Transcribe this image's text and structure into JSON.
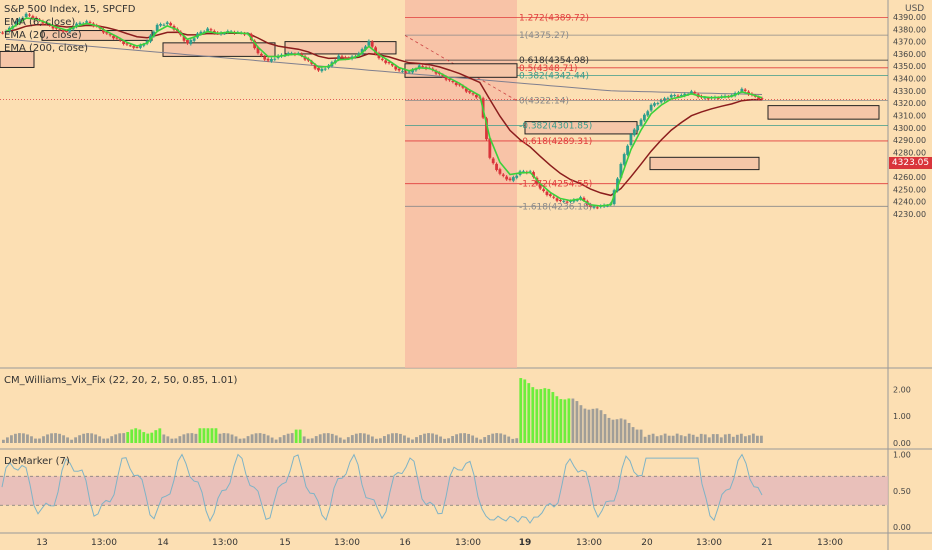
{
  "chart_data": {
    "type": "candlestick",
    "symbol_line": "S&P 500 Index, 15, SPCFD",
    "currency": "USD",
    "indicators": [
      "EMA (6, close)",
      "EMA (20, close)",
      "EMA (200, close)"
    ],
    "last_price": "4323.05",
    "y_ticks": [
      "4390.00",
      "4380.00",
      "4370.00",
      "4360.00",
      "4350.00",
      "4340.00",
      "4330.00",
      "4320.00",
      "4310.00",
      "4300.00",
      "4290.00",
      "4280.00",
      "4270.00",
      "4260.00",
      "4250.00",
      "4240.00",
      "4230.00"
    ],
    "ylim": [
      4226,
      4397
    ],
    "x_ticks": [
      "13",
      "13:00",
      "14",
      "13:00",
      "15",
      "13:00",
      "16",
      "13:00",
      "19",
      "13:00",
      "20",
      "13:00",
      "21",
      "13:00"
    ],
    "fib_levels": [
      {
        "label": "1.272(4389.72)",
        "value": 4389.72,
        "color": "#e03c3c"
      },
      {
        "label": "1(4375.27)",
        "value": 4375.27,
        "color": "#8a8a8a"
      },
      {
        "label": "0.618(4354.98)",
        "value": 4354.98,
        "color": "#333333"
      },
      {
        "label": "0.5(4348.71)",
        "value": 4348.71,
        "color": "#e03c3c"
      },
      {
        "label": "0.382(4342.44)",
        "value": 4342.44,
        "color": "#3d9b8b"
      },
      {
        "label": "0(4322.14)",
        "value": 4322.14,
        "color": "#8a8a8a"
      },
      {
        "label": "-0.382(4301.85)",
        "value": 4301.85,
        "color": "#3d9b8b"
      },
      {
        "label": "-0.618(4289.31)",
        "value": 4289.31,
        "color": "#e03c3c"
      },
      {
        "label": "-1.272(4254.55)",
        "value": 4254.55,
        "color": "#e03c3c"
      },
      {
        "label": "-1.618(4236.18)",
        "value": 4236.18,
        "color": "#8a8a8a"
      }
    ],
    "close_path": [
      4378,
      4386,
      4392,
      4388,
      4384,
      4380,
      4378,
      4384,
      4386,
      4382,
      4376,
      4372,
      4367,
      4365,
      4370,
      4383,
      4385,
      4378,
      4368,
      4376,
      4380,
      4376,
      4378,
      4377,
      4376,
      4360,
      4354,
      4358,
      4360,
      4360,
      4354,
      4346,
      4350,
      4358,
      4356,
      4360,
      4370,
      4356,
      4352,
      4346,
      4345,
      4350,
      4348,
      4343,
      4338,
      4334,
      4328,
      4324,
      4275,
      4262,
      4257,
      4264,
      4264,
      4250,
      4244,
      4240,
      4240,
      4243,
      4235,
      4236,
      4238,
      4270,
      4294,
      4306,
      4318,
      4322,
      4326,
      4326,
      4329,
      4324,
      4324,
      4325,
      4326,
      4331,
      4326,
      4323
    ],
    "series": [
      {
        "name": "EMA (6, close)",
        "color": "#3ad13a"
      },
      {
        "name": "EMA (20, close)",
        "color": "#8b1d1d"
      },
      {
        "name": "EMA (200, close)",
        "color": "#7f7f8f"
      }
    ],
    "williams_panel": {
      "title": "CM_Williams_Vix_Fix (22, 20, 2, 50, 0.85, 1.01)",
      "y_ticks": [
        "2.00",
        "1.00",
        "0.00"
      ],
      "ylim": [
        0,
        2.7
      ]
    },
    "demarker_panel": {
      "title": "DeMarker (7)",
      "y_ticks": [
        "1.00",
        "0.50",
        "0.00"
      ],
      "ylim": [
        -0.05,
        1.02
      ],
      "band": [
        0.3,
        0.7
      ]
    }
  }
}
